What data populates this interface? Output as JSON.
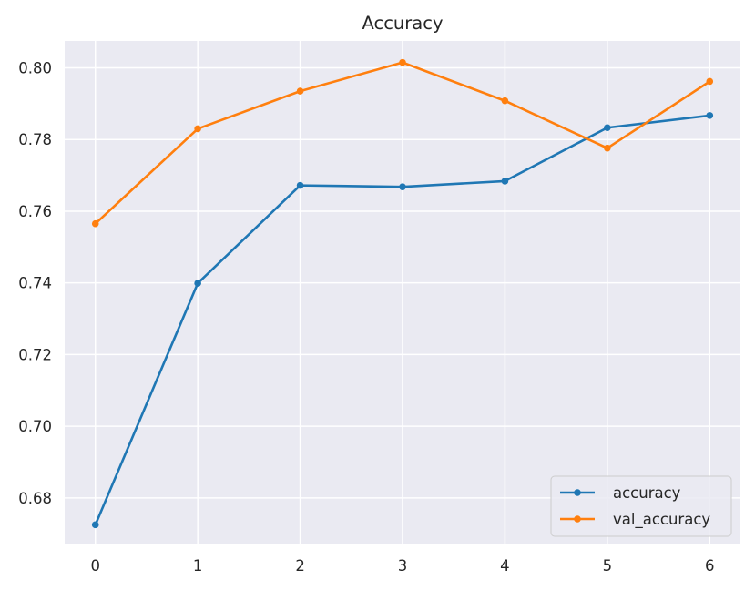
{
  "chart_data": {
    "type": "line",
    "title": "Accuracy",
    "xlabel": "",
    "ylabel": "",
    "x": [
      0,
      1,
      2,
      3,
      4,
      5,
      6
    ],
    "xlim": [
      -0.3,
      6.3
    ],
    "ylim": [
      0.667,
      0.8075
    ],
    "xticks": [
      0,
      1,
      2,
      3,
      4,
      5,
      6
    ],
    "yticks": [
      0.68,
      0.7,
      0.72,
      0.74,
      0.76,
      0.78,
      0.8
    ],
    "ytick_labels": [
      "0.68",
      "0.70",
      "0.72",
      "0.74",
      "0.76",
      "0.78",
      "0.80"
    ],
    "grid": true,
    "legend_position": "lower-right",
    "background": "#eaeaf2",
    "series": [
      {
        "name": "accuracy",
        "color": "#1f77b4",
        "marker": "circle",
        "values": [
          0.6725,
          0.7399,
          0.7672,
          0.7668,
          0.7684,
          0.7833,
          0.7867
        ]
      },
      {
        "name": "val_accuracy",
        "color": "#ff7f0e",
        "marker": "circle",
        "values": [
          0.7565,
          0.783,
          0.7935,
          0.8015,
          0.7908,
          0.7776,
          0.7962
        ]
      }
    ]
  }
}
